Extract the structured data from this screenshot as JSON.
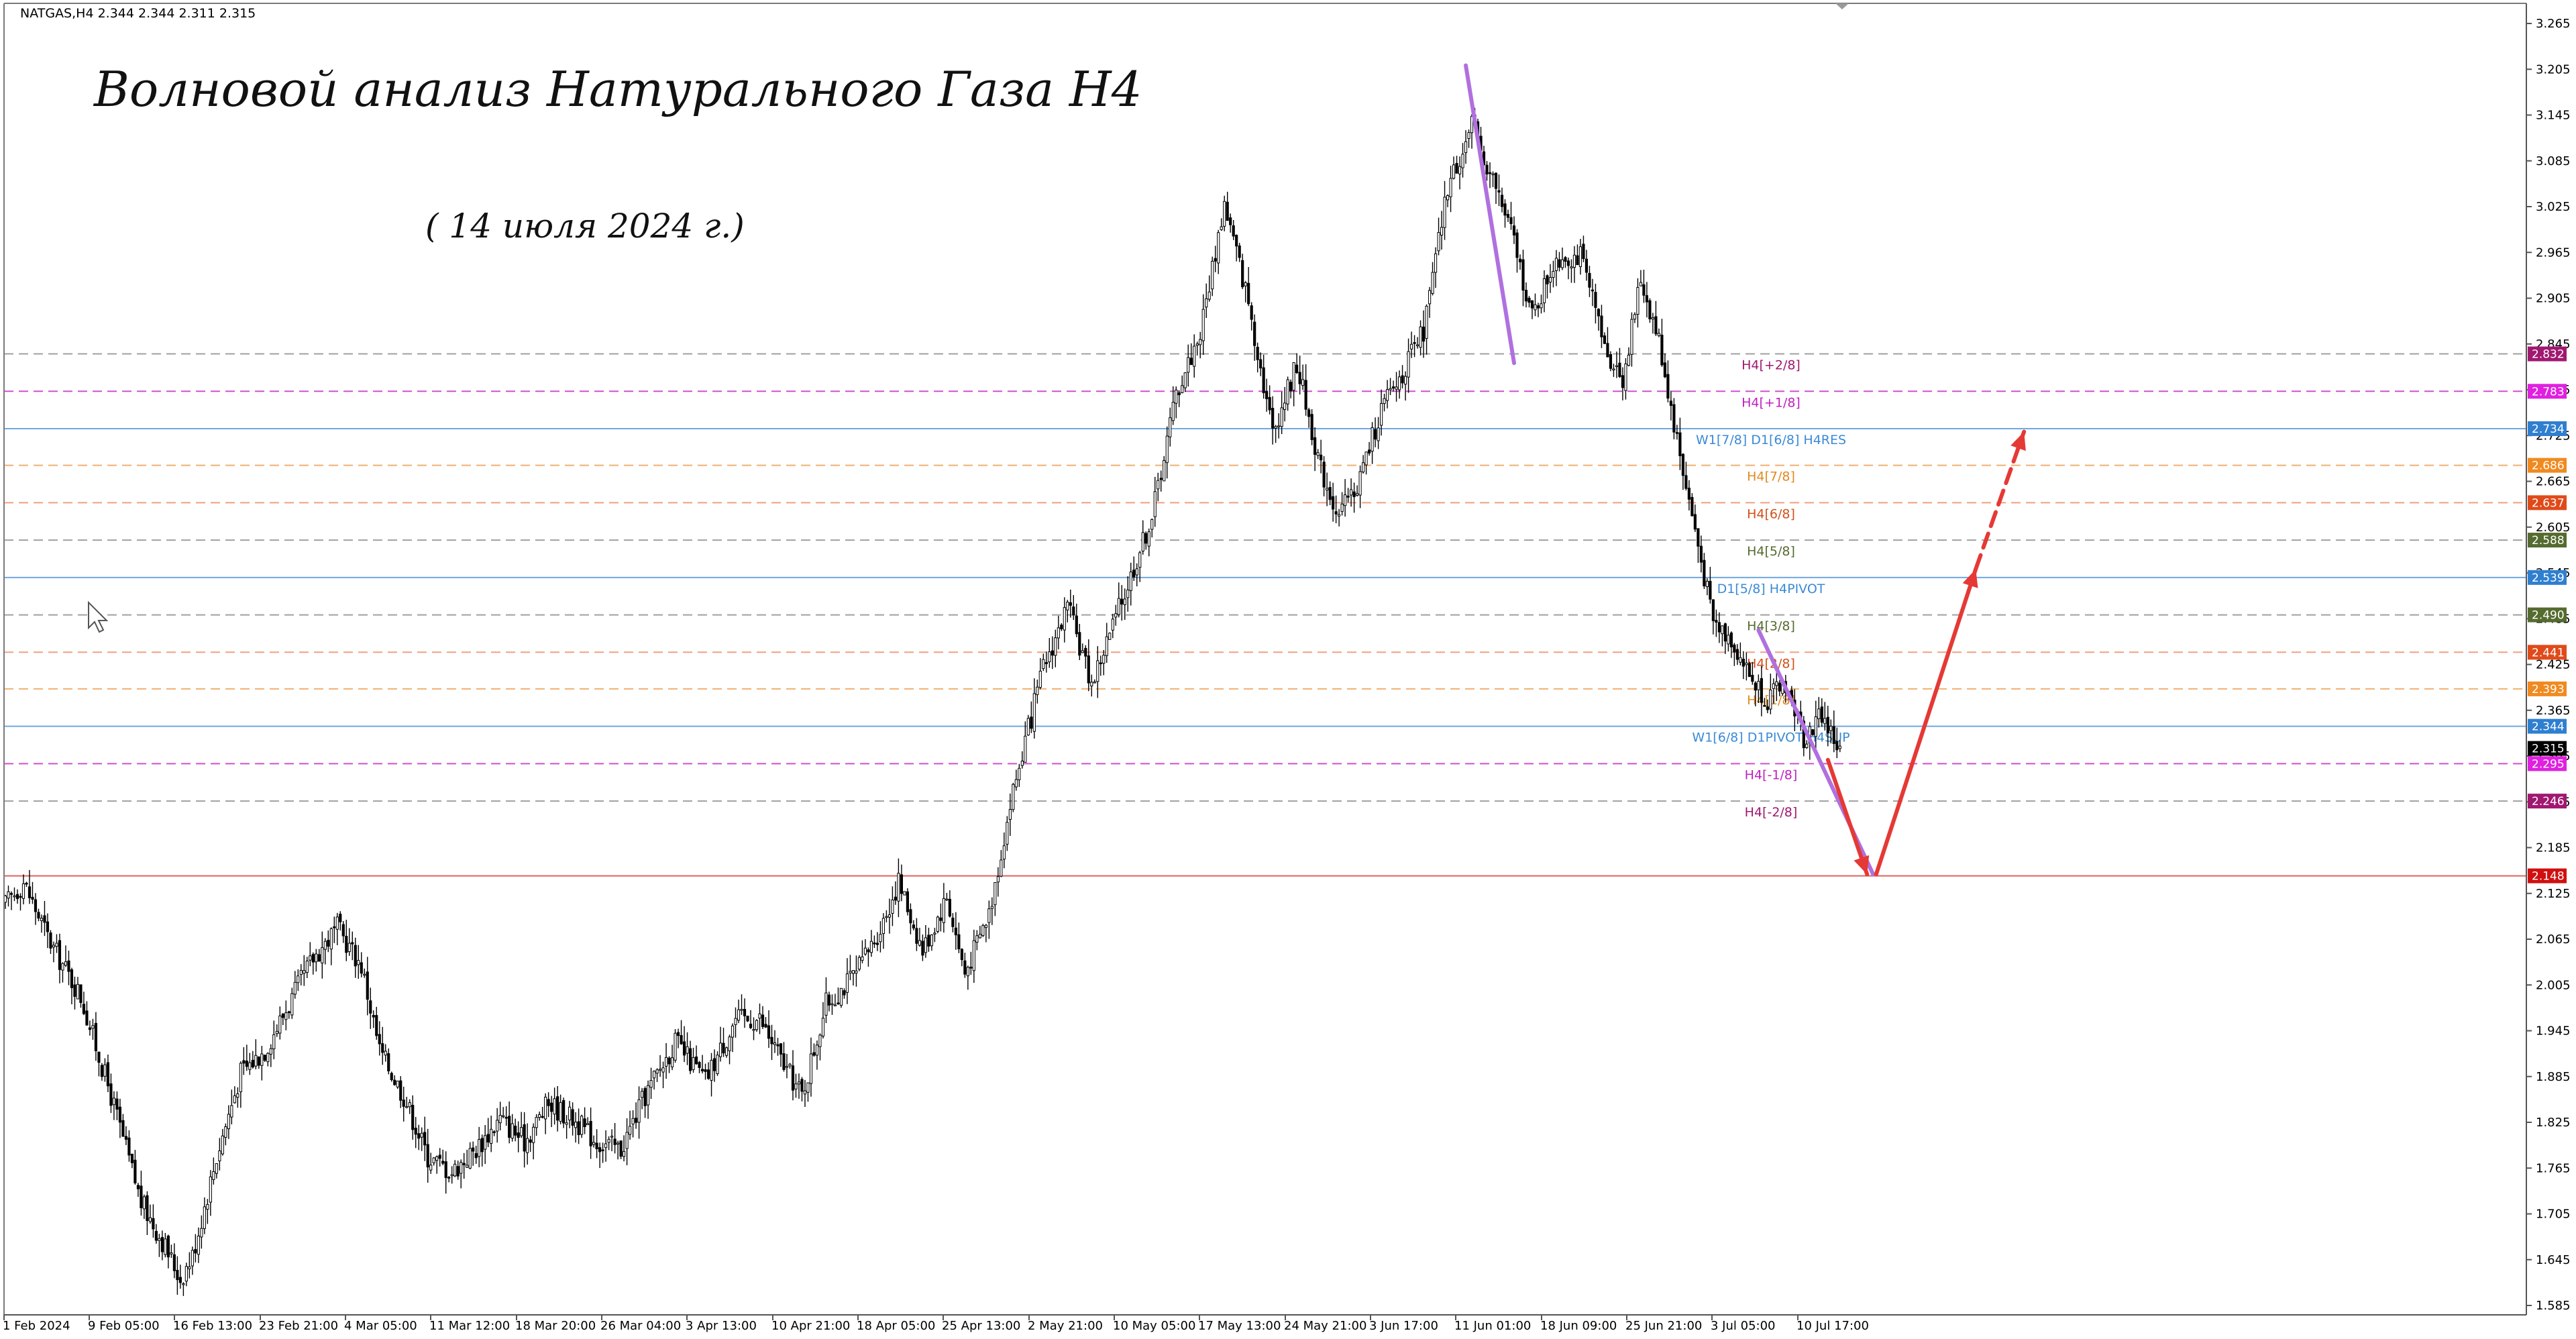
{
  "header": {
    "symbol_info": "NATGAS,H4  2.344 2.344 2.311 2.315"
  },
  "annotations": {
    "title": "Волновой анализ Натурального Газа H4",
    "date": "( 14 июля 2024 г.)"
  },
  "colors": {
    "candle": "#000000",
    "level_blue": "#5b9bd5",
    "level_magenta": "#d060d0",
    "level_orange": "#f0a05a",
    "level_red": "#e05050",
    "level_gray": "#a0a0a0",
    "forecast_arrow": "#e53935",
    "wave_line": "#b070e0"
  },
  "chart_data": {
    "type": "candlestick",
    "ylim": [
      1.555,
      3.265
    ],
    "y_ticks": [
      "3.265",
      "3.205",
      "3.145",
      "3.085",
      "3.025",
      "2.965",
      "2.905",
      "2.845",
      "2.785",
      "2.725",
      "2.665",
      "2.605",
      "2.545",
      "2.485",
      "2.425",
      "2.365",
      "2.305",
      "2.245",
      "2.185",
      "2.125",
      "2.065",
      "2.005",
      "1.945",
      "1.885",
      "1.825",
      "1.765",
      "1.705",
      "1.645",
      "1.585"
    ],
    "x_ticks": [
      "1 Feb 2024",
      "9 Feb 05:00",
      "16 Feb 13:00",
      "23 Feb 21:00",
      "4 Mar 05:00",
      "11 Mar 12:00",
      "18 Mar 20:00",
      "26 Mar 04:00",
      "3 Apr 13:00",
      "10 Apr 21:00",
      "18 Apr 05:00",
      "25 Apr 13:00",
      "2 May 21:00",
      "10 May 05:00",
      "17 May 13:00",
      "24 May 21:00",
      "3 Jun 17:00",
      "11 Jun 01:00",
      "18 Jun 09:00",
      "25 Jun 21:00",
      "3 Jul 05:00",
      "10 Jul 17:00"
    ],
    "price_anchors": [
      [
        0,
        2.11
      ],
      [
        6,
        2.14
      ],
      [
        15,
        2.06
      ],
      [
        25,
        1.99
      ],
      [
        35,
        1.86
      ],
      [
        45,
        1.72
      ],
      [
        52,
        1.67
      ],
      [
        58,
        1.62
      ],
      [
        62,
        1.65
      ],
      [
        70,
        1.78
      ],
      [
        78,
        1.89
      ],
      [
        86,
        1.92
      ],
      [
        94,
        1.98
      ],
      [
        102,
        2.04
      ],
      [
        110,
        2.08
      ],
      [
        118,
        2.03
      ],
      [
        124,
        1.92
      ],
      [
        132,
        1.86
      ],
      [
        140,
        1.78
      ],
      [
        148,
        1.76
      ],
      [
        156,
        1.79
      ],
      [
        164,
        1.83
      ],
      [
        172,
        1.8
      ],
      [
        180,
        1.85
      ],
      [
        188,
        1.83
      ],
      [
        196,
        1.8
      ],
      [
        204,
        1.79
      ],
      [
        212,
        1.86
      ],
      [
        222,
        1.93
      ],
      [
        232,
        1.88
      ],
      [
        242,
        1.96
      ],
      [
        250,
        1.96
      ],
      [
        258,
        1.9
      ],
      [
        264,
        1.86
      ],
      [
        272,
        1.98
      ],
      [
        282,
        2.02
      ],
      [
        290,
        2.08
      ],
      [
        296,
        2.14
      ],
      [
        304,
        2.05
      ],
      [
        312,
        2.12
      ],
      [
        318,
        2.02
      ],
      [
        326,
        2.1
      ],
      [
        334,
        2.26
      ],
      [
        344,
        2.42
      ],
      [
        352,
        2.5
      ],
      [
        360,
        2.4
      ],
      [
        372,
        2.53
      ],
      [
        380,
        2.62
      ],
      [
        388,
        2.78
      ],
      [
        396,
        2.86
      ],
      [
        404,
        3.03
      ],
      [
        412,
        2.9
      ],
      [
        420,
        2.73
      ],
      [
        428,
        2.82
      ],
      [
        436,
        2.68
      ],
      [
        442,
        2.62
      ],
      [
        448,
        2.66
      ],
      [
        456,
        2.76
      ],
      [
        462,
        2.8
      ],
      [
        470,
        2.86
      ],
      [
        478,
        3.05
      ],
      [
        486,
        3.13
      ],
      [
        494,
        3.05
      ],
      [
        500,
        2.98
      ],
      [
        506,
        2.88
      ],
      [
        514,
        2.96
      ],
      [
        522,
        2.96
      ],
      [
        530,
        2.84
      ],
      [
        536,
        2.8
      ],
      [
        542,
        2.93
      ],
      [
        548,
        2.85
      ],
      [
        554,
        2.72
      ],
      [
        560,
        2.6
      ],
      [
        566,
        2.48
      ],
      [
        572,
        2.46
      ],
      [
        578,
        2.41
      ],
      [
        584,
        2.38
      ],
      [
        590,
        2.4
      ],
      [
        596,
        2.33
      ],
      [
        602,
        2.36
      ],
      [
        608,
        2.31
      ]
    ],
    "levels": [
      {
        "value": 2.832,
        "label": "H4[+2/8]",
        "price_tag": "2.832",
        "color": "#a0a0a0",
        "tag_color": "#a01870",
        "label_color": "#a01870",
        "dash": true
      },
      {
        "value": 2.783,
        "label": "H4[+1/8]",
        "price_tag": "2.783",
        "color": "#d050d0",
        "tag_color": "#e020e0",
        "label_color": "#c020c0",
        "dash": true
      },
      {
        "value": 2.734,
        "label": "W1[7/8] D1[6/8] H4RES",
        "price_tag": "2.734",
        "color": "#70a8e0",
        "tag_color": "#2f7fd0",
        "label_color": "#3a8ad8",
        "dash": false
      },
      {
        "value": 2.686,
        "label": "H4[7/8]",
        "price_tag": "2.686",
        "color": "#f0b070",
        "tag_color": "#f08a20",
        "label_color": "#e08a20",
        "dash": true
      },
      {
        "value": 2.637,
        "label": "H4[6/8]",
        "price_tag": "2.637",
        "color": "#f0a080",
        "tag_color": "#e04a1a",
        "label_color": "#d0501a",
        "dash": true
      },
      {
        "value": 2.588,
        "label": "H4[5/8]",
        "price_tag": "2.588",
        "color": "#a0a0a0",
        "tag_color": "#556b2f",
        "label_color": "#556b2f",
        "dash": true
      },
      {
        "value": 2.539,
        "label": "D1[5/8] H4PIVOT",
        "price_tag": "2.539",
        "color": "#70a8e0",
        "tag_color": "#2f7fd0",
        "label_color": "#3a8ad8",
        "dash": false
      },
      {
        "value": 2.49,
        "label": "H4[3/8]",
        "price_tag": "2.490",
        "color": "#a0a0a0",
        "tag_color": "#556b2f",
        "label_color": "#556b2f",
        "dash": true
      },
      {
        "value": 2.441,
        "label": "H4[2/8]",
        "price_tag": "2.441",
        "color": "#f0a080",
        "tag_color": "#e04a1a",
        "label_color": "#d0501a",
        "dash": true
      },
      {
        "value": 2.393,
        "label": "H4[1/8]",
        "price_tag": "2.393",
        "color": "#f0b070",
        "tag_color": "#f08a20",
        "label_color": "#e08a20",
        "dash": true
      },
      {
        "value": 2.344,
        "label": "W1[6/8] D1PIVOT H4SUP",
        "price_tag": "2.344",
        "color": "#70a8e0",
        "tag_color": "#2f7fd0",
        "label_color": "#3a8ad8",
        "dash": false
      },
      {
        "value": 2.295,
        "label": "H4[-1/8]",
        "price_tag": "2.295",
        "color": "#d050d0",
        "tag_color": "#e020e0",
        "label_color": "#c020c0",
        "dash": true
      },
      {
        "value": 2.246,
        "label": "H4[-2/8]",
        "price_tag": "2.246",
        "color": "#a0a0a0",
        "tag_color": "#a01870",
        "label_color": "#a01870",
        "dash": true
      },
      {
        "value": 2.148,
        "label": "",
        "price_tag": "2.148",
        "color": "#e06060",
        "tag_color": "#d01010",
        "label_color": "#d01010",
        "dash": false
      }
    ],
    "current_price": "2.315",
    "wave_lines": [
      {
        "x1": 484,
        "y1": 3.21,
        "x2": 500,
        "y2": 2.82
      },
      {
        "x1": 581,
        "y1": 2.47,
        "x2": 619,
        "y2": 2.15
      }
    ],
    "forecast_arrows": [
      {
        "x1": 604,
        "y1": 2.3,
        "x2": 617,
        "y2": 2.15,
        "dashed": false
      },
      {
        "x1": 620,
        "y1": 2.15,
        "x2": 653,
        "y2": 2.55,
        "dashed": false
      },
      {
        "x1": 653,
        "y1": 2.55,
        "x2": 669,
        "y2": 2.73,
        "dashed": true
      }
    ]
  }
}
